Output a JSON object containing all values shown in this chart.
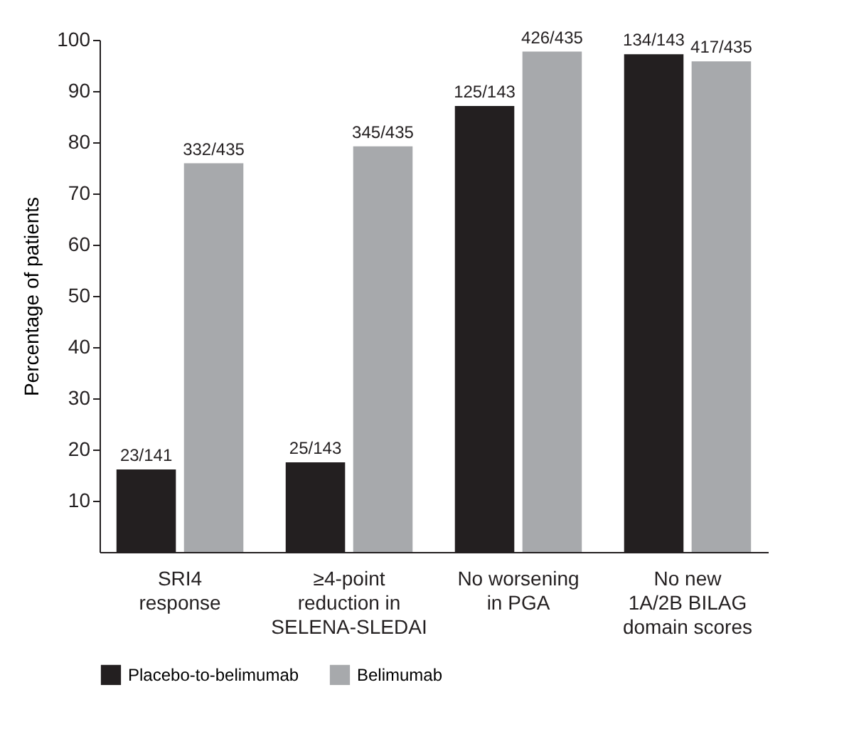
{
  "chart_data": {
    "type": "bar",
    "ylabel": "Percentage of patients",
    "categories": [
      "SRI4\nresponse",
      "≥4-point\nreduction in\nSELENA-SLEDAI",
      "No worsening\nin PGA",
      "No new\n1A/2B BILAG\ndomain scores"
    ],
    "series": [
      {
        "name": "Placebo-to-belimumab",
        "color": "#231f20",
        "values": [
          16.1,
          17.5,
          87.1,
          97.2
        ],
        "value_labels": [
          "23/141",
          "25/143",
          "125/143",
          "134/143"
        ]
      },
      {
        "name": "Belimumab",
        "color": "#a7a9ac",
        "values": [
          75.9,
          79.2,
          97.7,
          95.8
        ],
        "value_labels": [
          "332/435",
          "345/435",
          "426/435",
          "417/435"
        ]
      }
    ],
    "ylim": [
      0,
      100
    ],
    "yticks": [
      10,
      20,
      30,
      40,
      50,
      60,
      70,
      80,
      90,
      100
    ],
    "grid": false,
    "legend": "bottom"
  }
}
